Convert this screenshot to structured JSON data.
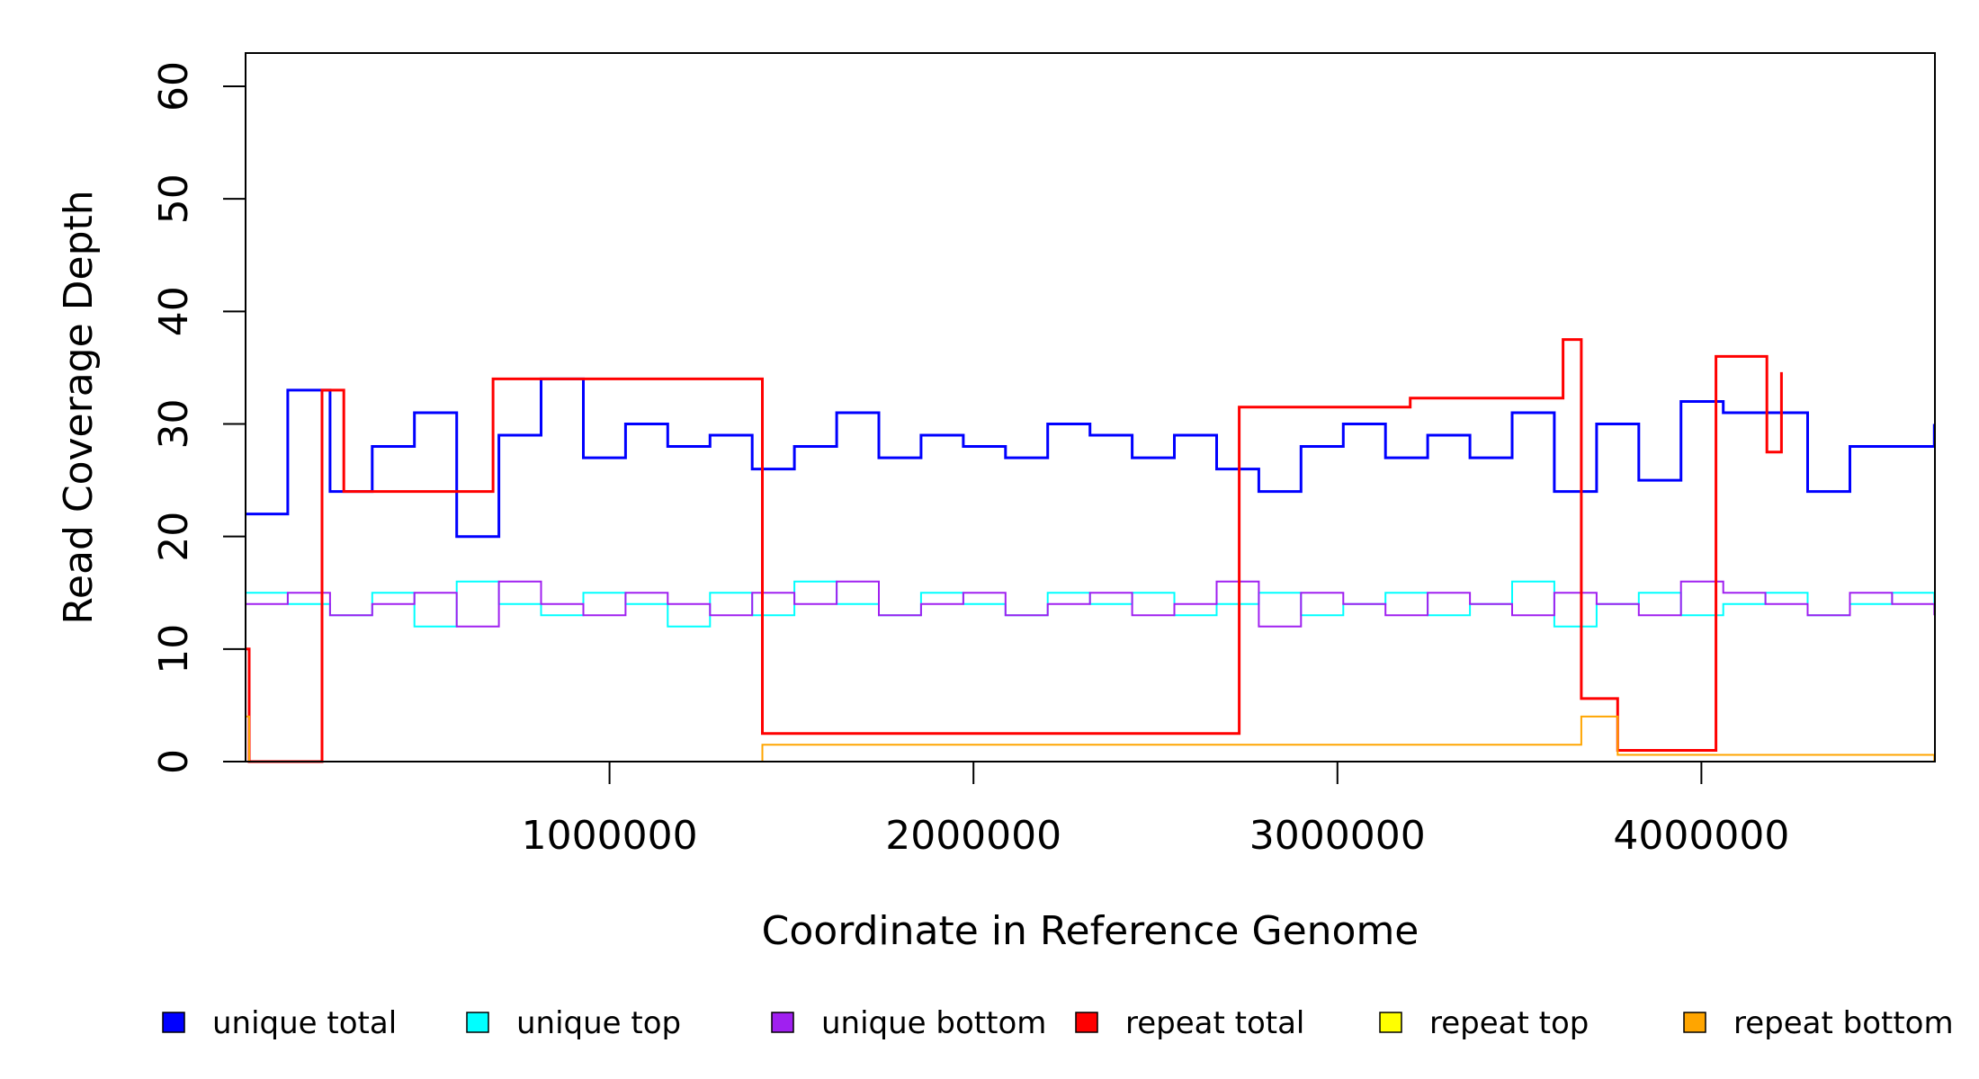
{
  "chart_data": {
    "type": "line",
    "xlabel": "Coordinate in Reference Genome",
    "ylabel": "Read Coverage Depth",
    "xlim": [
      0,
      4641652
    ],
    "ylim": [
      0,
      63
    ],
    "x_ticks": [
      1000000,
      2000000,
      3000000,
      4000000
    ],
    "x_tick_labels": [
      "1000000",
      "2000000",
      "3000000",
      "4000000"
    ],
    "y_ticks": [
      0,
      10,
      20,
      30,
      40,
      50,
      60
    ],
    "y_tick_labels": [
      "0",
      "10",
      "20",
      "30",
      "40",
      "50",
      "60"
    ],
    "grid": false,
    "legend_position": "bottom",
    "legend": [
      {
        "label": "unique total",
        "color": "#0000FF"
      },
      {
        "label": "unique top",
        "color": "#00FFFF"
      },
      {
        "label": "unique bottom",
        "color": "#A020F0"
      },
      {
        "label": "repeat total",
        "color": "#FF0000"
      },
      {
        "label": "repeat top",
        "color": "#FFFF00"
      },
      {
        "label": "repeat bottom",
        "color": "#FFA500"
      }
    ],
    "series": [
      {
        "name": "unique total",
        "color": "#0000FF",
        "x": [
          0,
          116000,
          232000,
          348000,
          464000,
          580000,
          696000,
          812000,
          928000,
          1044000,
          1160000,
          1276000,
          1392000,
          1508000,
          1624000,
          1740000,
          1856000,
          1972000,
          2088000,
          2204000,
          2320000,
          2436000,
          2552000,
          2668000,
          2784000,
          2900000,
          3016000,
          3132000,
          3248000,
          3364000,
          3480000,
          3596000,
          3712000,
          3828000,
          3944000,
          4060000,
          4176000,
          4292000,
          4408000,
          4524000,
          4640000
        ],
        "values": [
          22,
          33,
          24,
          28,
          31,
          20,
          29,
          34,
          27,
          30,
          28,
          29,
          26,
          28,
          31,
          27,
          29,
          28,
          27,
          30,
          29,
          27,
          29,
          26,
          24,
          28,
          30,
          27,
          29,
          27,
          31,
          24,
          30,
          25,
          32,
          31,
          31,
          24,
          28,
          28,
          30
        ]
      },
      {
        "name": "unique top",
        "color": "#00FFFF",
        "x": [
          0,
          116000,
          232000,
          348000,
          464000,
          580000,
          696000,
          812000,
          928000,
          1044000,
          1160000,
          1276000,
          1392000,
          1508000,
          1624000,
          1740000,
          1856000,
          1972000,
          2088000,
          2204000,
          2320000,
          2436000,
          2552000,
          2668000,
          2784000,
          2900000,
          3016000,
          3132000,
          3248000,
          3364000,
          3480000,
          3596000,
          3712000,
          3828000,
          3944000,
          4060000,
          4176000,
          4292000,
          4408000,
          4524000,
          4640000
        ],
        "values": [
          15,
          14,
          13,
          15,
          12,
          16,
          14,
          13,
          15,
          14,
          12,
          15,
          13,
          16,
          14,
          13,
          15,
          14,
          13,
          15,
          14,
          15,
          13,
          14,
          15,
          13,
          14,
          15,
          13,
          14,
          16,
          12,
          14,
          15,
          13,
          14,
          15,
          13,
          14,
          15,
          14
        ]
      },
      {
        "name": "unique bottom",
        "color": "#A020F0",
        "x": [
          0,
          116000,
          232000,
          348000,
          464000,
          580000,
          696000,
          812000,
          928000,
          1044000,
          1160000,
          1276000,
          1392000,
          1508000,
          1624000,
          1740000,
          1856000,
          1972000,
          2088000,
          2204000,
          2320000,
          2436000,
          2552000,
          2668000,
          2784000,
          2900000,
          3016000,
          3132000,
          3248000,
          3364000,
          3480000,
          3596000,
          3712000,
          3828000,
          3944000,
          4060000,
          4176000,
          4292000,
          4408000,
          4524000,
          4640000
        ],
        "values": [
          14,
          15,
          13,
          14,
          15,
          12,
          16,
          14,
          13,
          15,
          14,
          13,
          15,
          14,
          16,
          13,
          14,
          15,
          13,
          14,
          15,
          13,
          14,
          16,
          12,
          15,
          14,
          13,
          15,
          14,
          13,
          15,
          14,
          13,
          16,
          15,
          14,
          13,
          15,
          14,
          13
        ]
      },
      {
        "name": "repeat total",
        "color": "#FF0000",
        "x": [
          0,
          10000,
          210000,
          270000,
          680000,
          1420000,
          2730000,
          3200000,
          3620000,
          3670000,
          3770000,
          4040000,
          4180000,
          4220000
        ],
        "values": [
          10,
          0,
          33,
          24,
          34,
          2.5,
          31.5,
          32.3,
          37.5,
          5.6,
          1,
          36,
          27.5,
          34.6
        ]
      },
      {
        "name": "repeat top",
        "color": "#FFFF00",
        "x": [
          0,
          4640000
        ],
        "values": [
          0,
          0
        ]
      },
      {
        "name": "repeat bottom",
        "color": "#FFA500",
        "x": [
          0,
          10000,
          1420000,
          3670000,
          3770000,
          4640000
        ],
        "values": [
          4,
          0,
          1.5,
          4,
          0.6,
          0
        ]
      }
    ]
  }
}
